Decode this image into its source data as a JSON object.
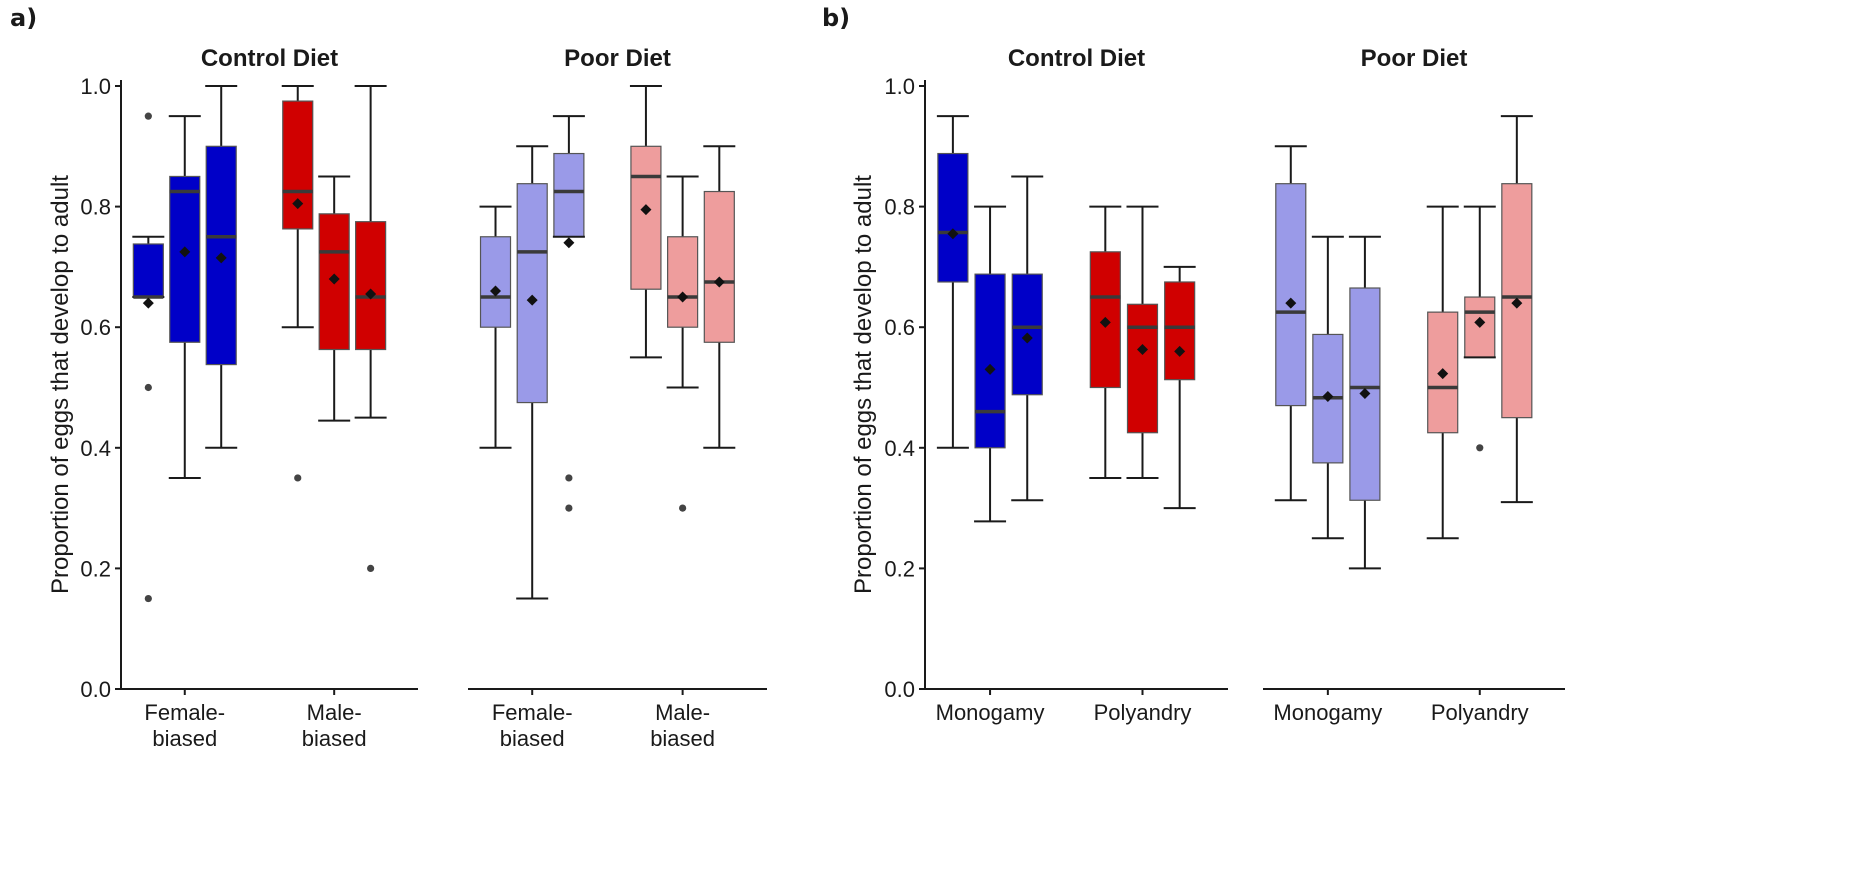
{
  "colors": {
    "control_blue": "#0000c8",
    "control_red": "#d00000",
    "poor_blue": "#9a9ae8",
    "poor_red": "#ee9d9d",
    "median": "#3a3a3a",
    "whisker": "#1a1a1a",
    "axis": "#1a1a1a"
  },
  "chart_data": [
    {
      "panel_label": "a)",
      "type": "boxplot",
      "ylabel": "Proportion of eggs that develop to adult",
      "ylim": [
        0.0,
        1.0
      ],
      "yticks": [
        "0.0",
        "0.2",
        "0.4",
        "0.6",
        "0.8",
        "1.0"
      ],
      "facets": [
        {
          "title": "Control Diet",
          "categories": [
            "Female-\nbiased",
            "Male-\nbiased"
          ],
          "boxes": [
            {
              "group": 0,
              "color": "control_blue",
              "q1": 0.65,
              "median": 0.65,
              "q3": 0.738,
              "wlo": 0.65,
              "whi": 0.75,
              "mean": 0.64,
              "outliers": [
                0.95,
                0.5,
                0.15
              ]
            },
            {
              "group": 0,
              "color": "control_blue",
              "q1": 0.575,
              "median": 0.825,
              "q3": 0.85,
              "wlo": 0.35,
              "whi": 0.95,
              "mean": 0.725,
              "outliers": []
            },
            {
              "group": 0,
              "color": "control_blue",
              "q1": 0.538,
              "median": 0.75,
              "q3": 0.9,
              "wlo": 0.4,
              "whi": 1.0,
              "mean": 0.715,
              "outliers": []
            },
            {
              "group": 1,
              "color": "control_red",
              "q1": 0.763,
              "median": 0.825,
              "q3": 0.975,
              "wlo": 0.6,
              "whi": 1.0,
              "mean": 0.805,
              "outliers": [
                0.35
              ]
            },
            {
              "group": 1,
              "color": "control_red",
              "q1": 0.563,
              "median": 0.725,
              "q3": 0.788,
              "wlo": 0.445,
              "whi": 0.85,
              "mean": 0.68,
              "outliers": []
            },
            {
              "group": 1,
              "color": "control_red",
              "q1": 0.563,
              "median": 0.65,
              "q3": 0.775,
              "wlo": 0.45,
              "whi": 1.0,
              "mean": 0.655,
              "outliers": [
                0.2
              ]
            }
          ]
        },
        {
          "title": "Poor Diet",
          "categories": [
            "Female-\nbiased",
            "Male-\nbiased"
          ],
          "boxes": [
            {
              "group": 0,
              "color": "poor_blue",
              "q1": 0.6,
              "median": 0.65,
              "q3": 0.75,
              "wlo": 0.4,
              "whi": 0.8,
              "mean": 0.66,
              "outliers": []
            },
            {
              "group": 0,
              "color": "poor_blue",
              "q1": 0.475,
              "median": 0.725,
              "q3": 0.838,
              "wlo": 0.15,
              "whi": 0.9,
              "mean": 0.645,
              "outliers": []
            },
            {
              "group": 0,
              "color": "poor_blue",
              "q1": 0.75,
              "median": 0.825,
              "q3": 0.888,
              "wlo": 0.75,
              "whi": 0.95,
              "mean": 0.74,
              "outliers": [
                0.35,
                0.3
              ]
            },
            {
              "group": 1,
              "color": "poor_red",
              "q1": 0.663,
              "median": 0.85,
              "q3": 0.9,
              "wlo": 0.55,
              "whi": 1.0,
              "mean": 0.795,
              "outliers": []
            },
            {
              "group": 1,
              "color": "poor_red",
              "q1": 0.6,
              "median": 0.65,
              "q3": 0.75,
              "wlo": 0.5,
              "whi": 0.85,
              "mean": 0.65,
              "outliers": [
                0.3
              ]
            },
            {
              "group": 1,
              "color": "poor_red",
              "q1": 0.575,
              "median": 0.675,
              "q3": 0.825,
              "wlo": 0.4,
              "whi": 0.9,
              "mean": 0.675,
              "outliers": []
            }
          ]
        }
      ]
    },
    {
      "panel_label": "b)",
      "type": "boxplot",
      "ylabel": "Proportion of eggs that develop to adult",
      "ylim": [
        0.0,
        1.0
      ],
      "yticks": [
        "0.0",
        "0.2",
        "0.4",
        "0.6",
        "0.8",
        "1.0"
      ],
      "facets": [
        {
          "title": "Control Diet",
          "categories": [
            "Monogamy",
            "Polyandry"
          ],
          "boxes": [
            {
              "group": 0,
              "color": "control_blue",
              "q1": 0.675,
              "median": 0.757,
              "q3": 0.888,
              "wlo": 0.4,
              "whi": 0.95,
              "mean": 0.755,
              "outliers": []
            },
            {
              "group": 0,
              "color": "control_blue",
              "q1": 0.4,
              "median": 0.46,
              "q3": 0.688,
              "wlo": 0.278,
              "whi": 0.8,
              "mean": 0.53,
              "outliers": []
            },
            {
              "group": 0,
              "color": "control_blue",
              "q1": 0.488,
              "median": 0.6,
              "q3": 0.688,
              "wlo": 0.313,
              "whi": 0.85,
              "mean": 0.582,
              "outliers": []
            },
            {
              "group": 1,
              "color": "control_red",
              "q1": 0.5,
              "median": 0.65,
              "q3": 0.725,
              "wlo": 0.35,
              "whi": 0.8,
              "mean": 0.608,
              "outliers": []
            },
            {
              "group": 1,
              "color": "control_red",
              "q1": 0.425,
              "median": 0.6,
              "q3": 0.638,
              "wlo": 0.35,
              "whi": 0.8,
              "mean": 0.563,
              "outliers": []
            },
            {
              "group": 1,
              "color": "control_red",
              "q1": 0.513,
              "median": 0.6,
              "q3": 0.675,
              "wlo": 0.3,
              "whi": 0.7,
              "mean": 0.56,
              "outliers": []
            }
          ]
        },
        {
          "title": "Poor Diet",
          "categories": [
            "Monogamy",
            "Polyandry"
          ],
          "boxes": [
            {
              "group": 0,
              "color": "poor_blue",
              "q1": 0.47,
              "median": 0.625,
              "q3": 0.838,
              "wlo": 0.313,
              "whi": 0.9,
              "mean": 0.64,
              "outliers": []
            },
            {
              "group": 0,
              "color": "poor_blue",
              "q1": 0.375,
              "median": 0.483,
              "q3": 0.588,
              "wlo": 0.25,
              "whi": 0.75,
              "mean": 0.485,
              "outliers": []
            },
            {
              "group": 0,
              "color": "poor_blue",
              "q1": 0.313,
              "median": 0.5,
              "q3": 0.665,
              "wlo": 0.2,
              "whi": 0.75,
              "mean": 0.49,
              "outliers": []
            },
            {
              "group": 1,
              "color": "poor_red",
              "q1": 0.425,
              "median": 0.5,
              "q3": 0.625,
              "wlo": 0.25,
              "whi": 0.8,
              "mean": 0.523,
              "outliers": []
            },
            {
              "group": 1,
              "color": "poor_red",
              "q1": 0.55,
              "median": 0.625,
              "q3": 0.65,
              "wlo": 0.55,
              "whi": 0.8,
              "mean": 0.608,
              "outliers": [
                0.4
              ]
            },
            {
              "group": 1,
              "color": "poor_red",
              "q1": 0.45,
              "median": 0.65,
              "q3": 0.838,
              "wlo": 0.31,
              "whi": 0.95,
              "mean": 0.64,
              "outliers": []
            }
          ]
        }
      ]
    }
  ]
}
